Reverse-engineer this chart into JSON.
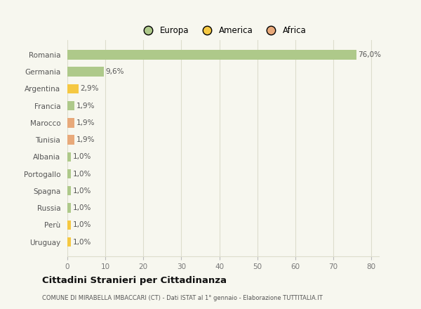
{
  "countries": [
    "Romania",
    "Germania",
    "Argentina",
    "Francia",
    "Marocco",
    "Tunisia",
    "Albania",
    "Portogallo",
    "Spagna",
    "Russia",
    "Perù",
    "Uruguay"
  ],
  "values": [
    76.0,
    9.6,
    2.9,
    1.9,
    1.9,
    1.9,
    1.0,
    1.0,
    1.0,
    1.0,
    1.0,
    1.0
  ],
  "labels": [
    "76,0%",
    "9,6%",
    "2,9%",
    "1,9%",
    "1,9%",
    "1,9%",
    "1,0%",
    "1,0%",
    "1,0%",
    "1,0%",
    "1,0%",
    "1,0%"
  ],
  "bar_colors": [
    "#aec98a",
    "#aec98a",
    "#f5c842",
    "#aec98a",
    "#e8a97a",
    "#e8a97a",
    "#aec98a",
    "#aec98a",
    "#aec98a",
    "#aec98a",
    "#f5c842",
    "#f5c842"
  ],
  "xlim": [
    0,
    82
  ],
  "xticks": [
    0,
    10,
    20,
    30,
    40,
    50,
    60,
    70,
    80
  ],
  "legend_labels": [
    "Europa",
    "America",
    "Africa"
  ],
  "legend_colors": [
    "#aec98a",
    "#f5c842",
    "#e8a97a"
  ],
  "title": "Cittadini Stranieri per Cittadinanza",
  "subtitle": "COMUNE DI MIRABELLA IMBACCARI (CT) - Dati ISTAT al 1° gennaio - Elaborazione TUTTITALIA.IT",
  "bg_color": "#f7f7ef",
  "grid_color": "#ddddcc",
  "label_fontsize": 7.5,
  "tick_fontsize": 7.5,
  "bar_height": 0.55
}
